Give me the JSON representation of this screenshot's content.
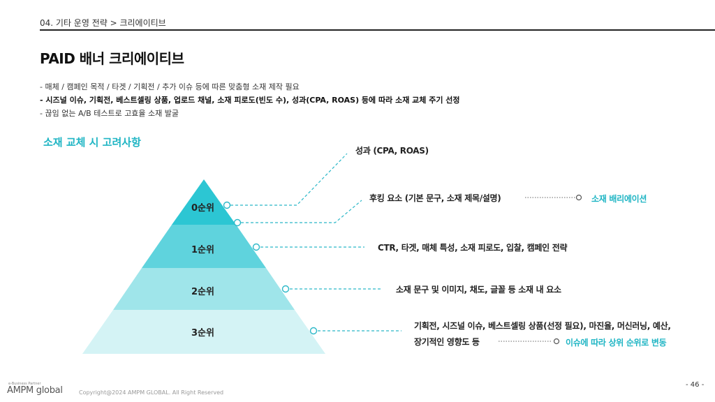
{
  "header": {
    "breadcrumb": "04. 기타 운영 전략 > 크리에이티브",
    "title": "PAID 배너 크리에이티브"
  },
  "bullets": [
    "- 매체 / 캠페인 목적 / 타겟 / 기획전 / 추가 이슈 등에 따른 맞춤형 소재 제작 필요",
    "- 시즈널 이슈, 기획전, 베스트셀링 상품, 업로드 채널, 소재 피로도(빈도 수), 성과(CPA, ROAS) 등에 따라 소재 교체 주기 선정",
    "- 끊임 없는 A/B 테스트로 고효율 소재 발굴"
  ],
  "section": {
    "heading": "소재 교체 시 고려사항"
  },
  "pyramid": {
    "tiers": [
      {
        "label": "0순위",
        "color": "#2cc6d3"
      },
      {
        "label": "1순위",
        "color": "#5fd3dd"
      },
      {
        "label": "2순위",
        "color": "#9fe5ea"
      },
      {
        "label": "3순위",
        "color": "#d4f3f5"
      }
    ],
    "line_color": "#2bb8c8"
  },
  "callouts": {
    "performance": "성과 (CPA, ROAS)",
    "hooking": "후킹 요소 (기본 문구, 소재 제목/설명)",
    "hooking_note": "소재 배리에이션",
    "tier1": "CTR, 타겟, 매체 특성, 소재 피로도, 입찰, 캠페인 전략",
    "tier2": "소재 문구 및 이미지, 채도, 글꼴 등 소재 내 요소",
    "tier3_line1": "기획전, 시즈널 이슈, 베스트셀링 상품(선정 필요), 마진율, 머신러닝, 예산,",
    "tier3_line2": "장기적인 영향도 등",
    "tier3_note": "이슈에 따라 상위 순위로 변동"
  },
  "footer": {
    "tagline": "e-Business Partner",
    "logo": "AMPM global",
    "copyright": "Copyright@2024 AMPM GLOBAL. All Right Reserved",
    "page": "- 46 -"
  }
}
